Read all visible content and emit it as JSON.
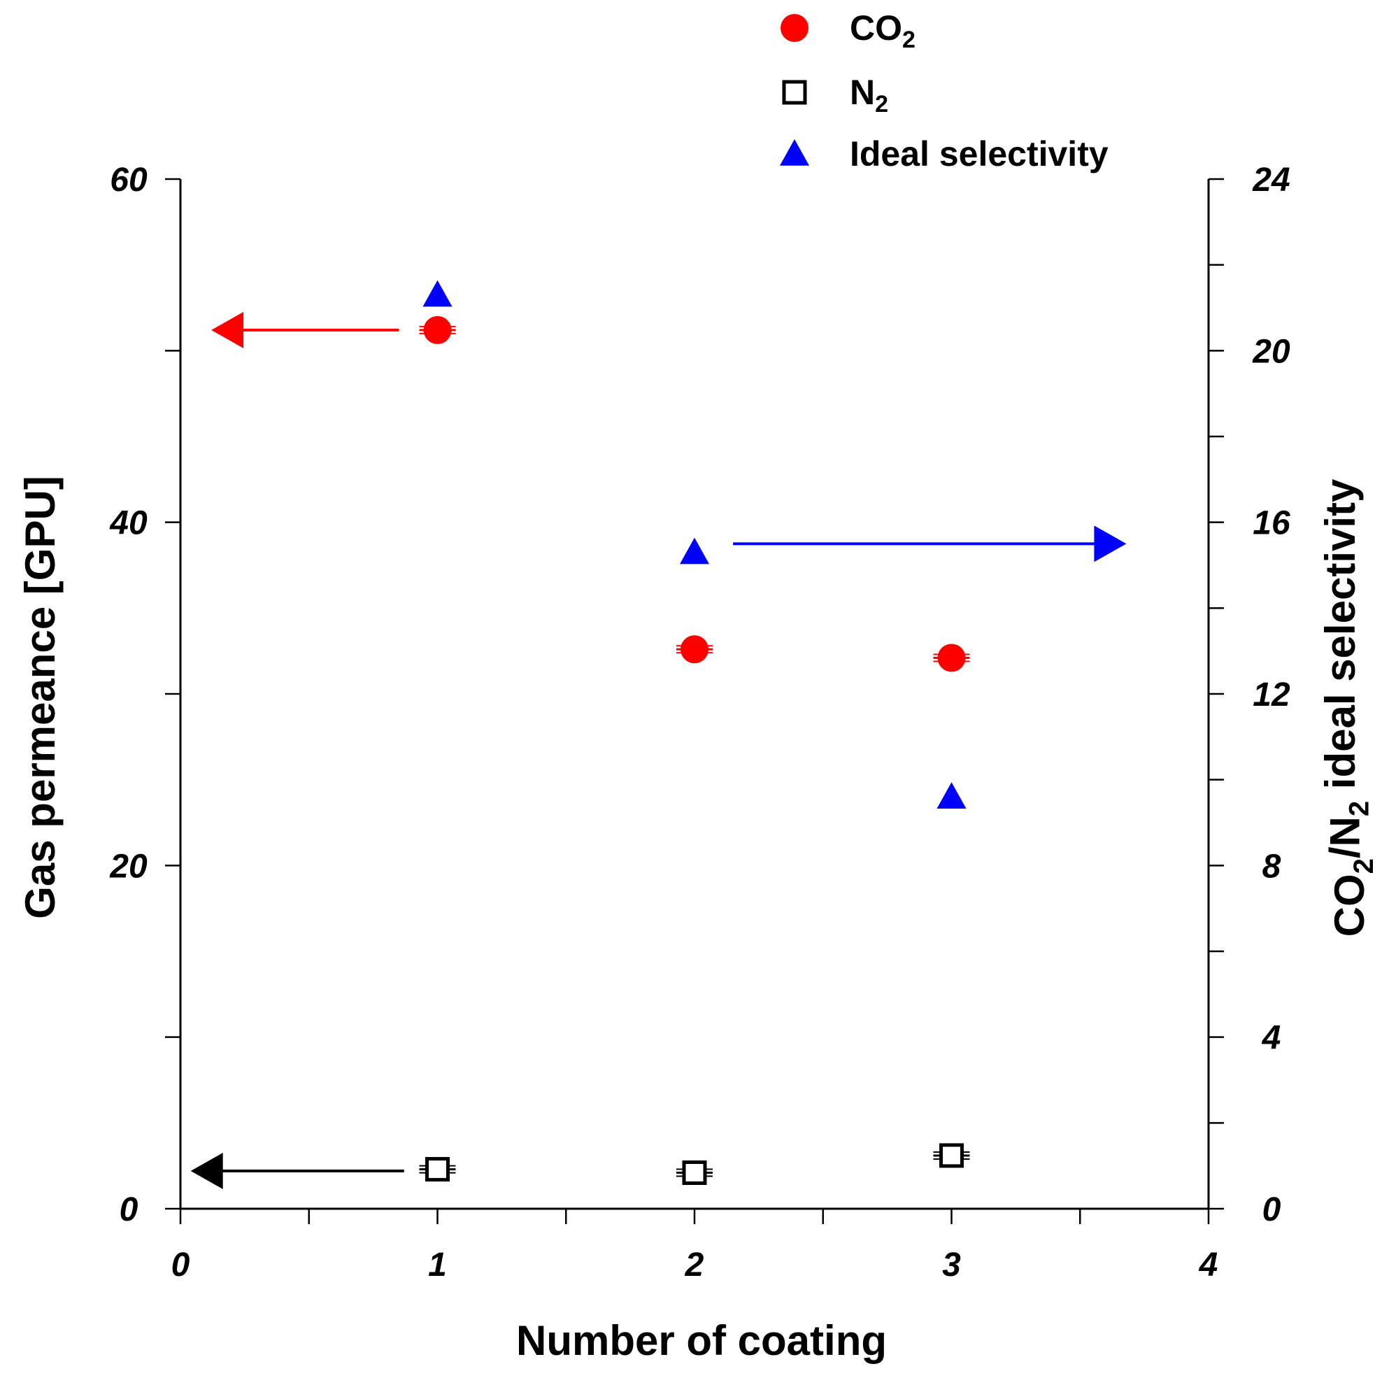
{
  "chart_data": {
    "type": "scatter",
    "x_axis": {
      "label": "Number of coating",
      "range": [
        0,
        4
      ],
      "ticks": [
        0,
        1,
        2,
        3,
        4
      ],
      "minor_ticks": [
        0.5,
        1.5,
        2.5,
        3.5
      ]
    },
    "y_axis_left": {
      "label_parts": [
        "Gas permeance [GPU]"
      ],
      "range": [
        0,
        60
      ],
      "ticks": [
        0,
        20,
        40,
        60
      ],
      "minor_ticks": [
        10,
        30,
        50
      ]
    },
    "y_axis_right": {
      "label_parts": [
        "CO",
        "2",
        "/N",
        "2",
        " ideal selectivity"
      ],
      "range": [
        0,
        24
      ],
      "ticks": [
        0,
        4,
        8,
        12,
        16,
        20,
        24
      ],
      "minor_ticks": [
        2,
        6,
        10,
        14,
        18,
        22
      ]
    },
    "series": [
      {
        "name_parts": [
          "CO",
          "2"
        ],
        "axis": "left",
        "marker": "circle",
        "color": "#ff0000",
        "x": [
          1,
          2,
          3
        ],
        "y": [
          51.2,
          32.6,
          32.1
        ]
      },
      {
        "name_parts": [
          "N",
          "2"
        ],
        "axis": "left",
        "marker": "square",
        "color": "#000000",
        "x": [
          1,
          2,
          3
        ],
        "y": [
          2.3,
          2.1,
          3.1
        ]
      },
      {
        "name_parts": [
          "Ideal selectivity"
        ],
        "axis": "right",
        "marker": "triangle",
        "color": "#0000ff",
        "x": [
          1,
          2,
          3
        ],
        "y": [
          21.3,
          15.3,
          9.6
        ]
      }
    ],
    "annotations": [
      {
        "type": "arrow",
        "direction": "left",
        "color": "#ff0000",
        "axis": "left",
        "y": 51.2,
        "x_from": 0.85,
        "x_to": 0.12
      },
      {
        "type": "arrow",
        "direction": "left",
        "color": "#000000",
        "axis": "left",
        "y": 2.2,
        "x_from": 0.87,
        "x_to": 0.04
      },
      {
        "type": "arrow",
        "direction": "right",
        "color": "#0000ff",
        "axis": "right",
        "y": 15.5,
        "x_from": 2.15,
        "x_to": 3.68
      }
    ],
    "legend_placement": "top-center",
    "grid": false
  }
}
